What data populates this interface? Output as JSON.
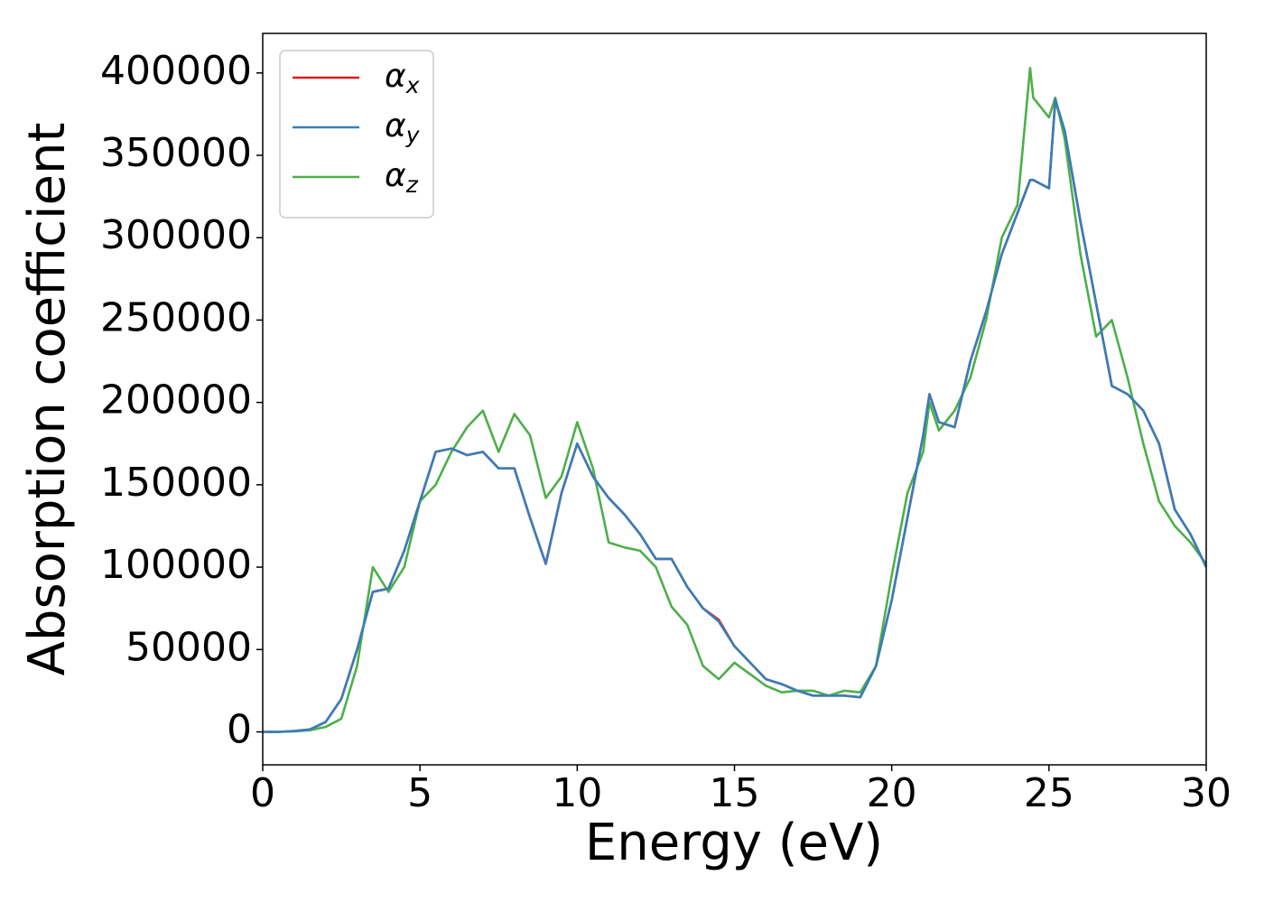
{
  "chart_data": {
    "type": "line",
    "xlabel": "Energy (eV)",
    "ylabel": "Absorption coefficient",
    "x": [
      0,
      0.5,
      1,
      1.5,
      2,
      2.5,
      3,
      3.5,
      4,
      4.5,
      5,
      5.5,
      6,
      6.5,
      7,
      7.5,
      8,
      8.5,
      9,
      9.5,
      10,
      10.5,
      11,
      11.5,
      12,
      12.5,
      13,
      13.5,
      14,
      14.5,
      15,
      15.5,
      16,
      16.5,
      17,
      17.5,
      18,
      18.5,
      19,
      19.5,
      20,
      20.5,
      21,
      21.2,
      21.5,
      22,
      22.5,
      23,
      23.5,
      24,
      24.4,
      24.5,
      25,
      25.2,
      25.5,
      26,
      26.5,
      27,
      27.5,
      28,
      28.5,
      29,
      29.5,
      30
    ],
    "series": [
      {
        "name": "αx",
        "color": "#e41a1c",
        "values": [
          0,
          0,
          500,
          1500,
          6000,
          20000,
          50000,
          85000,
          87000,
          110000,
          140000,
          170000,
          172000,
          168000,
          170000,
          160000,
          160000,
          130000,
          102000,
          145000,
          175000,
          155000,
          142000,
          132000,
          120000,
          105000,
          105000,
          88000,
          75000,
          68000,
          52000,
          42000,
          32000,
          29000,
          25000,
          22000,
          22000,
          22000,
          21000,
          40000,
          80000,
          130000,
          180000,
          205000,
          188000,
          185000,
          225000,
          255000,
          290000,
          315000,
          335000,
          335000,
          330000,
          383000,
          365000,
          310000,
          260000,
          210000,
          205000,
          195000,
          175000,
          135000,
          120000,
          100000
        ]
      },
      {
        "name": "αy",
        "color": "#377eb8",
        "values": [
          0,
          0,
          500,
          1500,
          6000,
          20000,
          50000,
          85000,
          87000,
          110000,
          140000,
          170000,
          172000,
          168000,
          170000,
          160000,
          160000,
          130000,
          102000,
          145000,
          175000,
          155000,
          142000,
          132000,
          120000,
          105000,
          105000,
          88000,
          75000,
          67000,
          52000,
          42000,
          32000,
          29000,
          25000,
          22000,
          22000,
          22000,
          21000,
          40000,
          80000,
          130000,
          180000,
          205000,
          188000,
          185000,
          225000,
          255000,
          290000,
          315000,
          335000,
          335000,
          330000,
          384000,
          365000,
          310000,
          260000,
          210000,
          205000,
          195000,
          175000,
          135000,
          120000,
          100000
        ]
      },
      {
        "name": "αz",
        "color": "#4daf4a",
        "values": [
          0,
          0,
          300,
          1000,
          3000,
          8000,
          40000,
          100000,
          85000,
          100000,
          140000,
          150000,
          170000,
          185000,
          195000,
          170000,
          193000,
          180000,
          142000,
          155000,
          188000,
          160000,
          115000,
          112000,
          110000,
          100000,
          76000,
          65000,
          40000,
          32000,
          42000,
          35000,
          28000,
          24000,
          25000,
          25000,
          22000,
          25000,
          24000,
          40000,
          95000,
          145000,
          170000,
          200000,
          183000,
          195000,
          215000,
          250000,
          300000,
          320000,
          403000,
          385000,
          373000,
          385000,
          360000,
          290000,
          240000,
          250000,
          215000,
          175000,
          140000,
          125000,
          115000,
          102000
        ]
      }
    ],
    "xlim": [
      0,
      30
    ],
    "xticks": [
      0,
      5,
      10,
      15,
      20,
      25,
      30
    ],
    "ylim": [
      -20000,
      424000
    ],
    "yticks": [
      0,
      50000,
      100000,
      150000,
      200000,
      250000,
      300000,
      350000,
      400000
    ],
    "legend": "upper-left",
    "grid": false
  }
}
